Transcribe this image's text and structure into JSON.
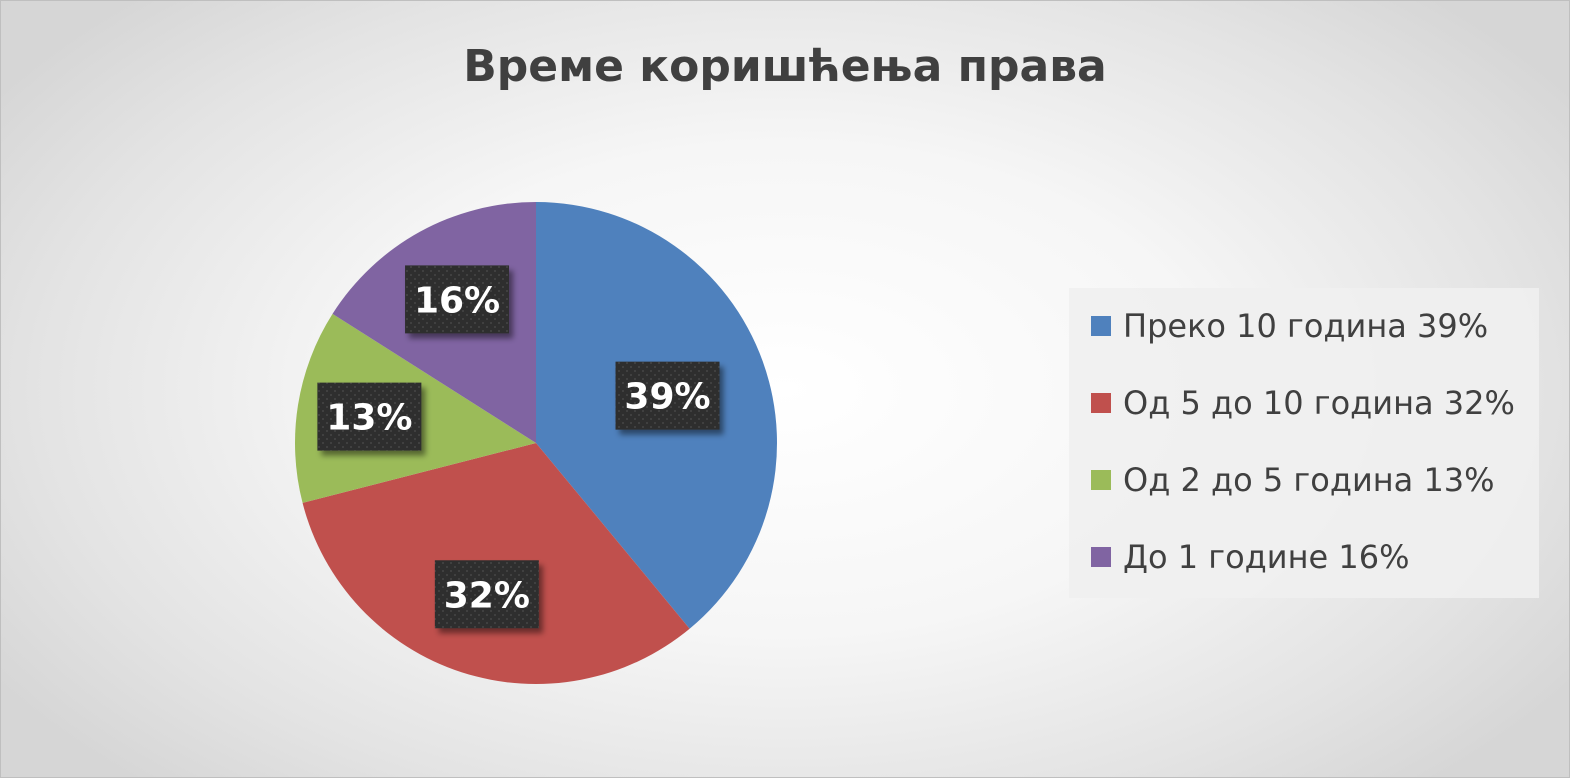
{
  "chart_data": {
    "type": "pie",
    "title": "Време коришћења права",
    "slices": [
      {
        "label": "Преко 10 година",
        "value": 39,
        "data_label": "39%",
        "legend": "Преко 10 година 39%",
        "color": "#4F81BD"
      },
      {
        "label": "Од 5 до 10 година",
        "value": 32,
        "data_label": "32%",
        "legend": "Од 5 до 10 година 32%",
        "color": "#C0504D"
      },
      {
        "label": "Од 2 до 5 година",
        "value": 13,
        "data_label": "13%",
        "legend": "Од 2 до 5 година 13%",
        "color": "#9BBB59"
      },
      {
        "label": "До 1 године",
        "value": 16,
        "data_label": "16%",
        "legend": "До 1 године 16%",
        "color": "#8064A2"
      }
    ],
    "legend_position": "right"
  }
}
